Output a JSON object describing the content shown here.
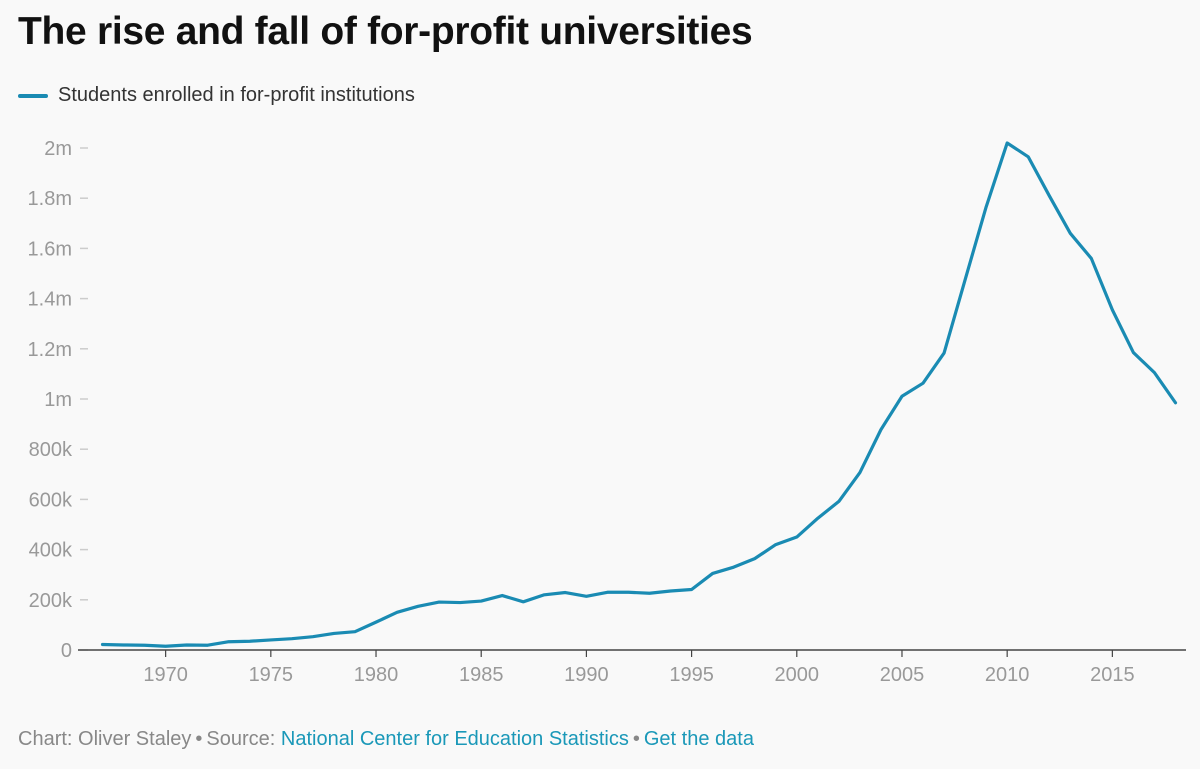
{
  "header": {
    "title": "The rise and fall of for-profit universities"
  },
  "colors": {
    "series": "#1a8bb3",
    "link": "#1a98b8",
    "axis_text": "#999999",
    "background": "#f9f9f9"
  },
  "footer": {
    "chart_prefix": "Chart: Oliver Staley",
    "source_prefix": "Source:",
    "source_link": "National Center for Education Statistics",
    "data_link": "Get the data"
  },
  "chart_data": {
    "type": "line",
    "xlim": [
      1966.5,
      2018.5
    ],
    "ylim": [
      0,
      2000000
    ],
    "x_ticks": [
      1970,
      1975,
      1980,
      1985,
      1990,
      1995,
      2000,
      2005,
      2010,
      2015
    ],
    "y_ticks": [
      0,
      200000,
      400000,
      600000,
      800000,
      1000000,
      1200000,
      1400000,
      1600000,
      1800000,
      2000000
    ],
    "y_tick_labels": [
      "0",
      "200k",
      "400k",
      "600k",
      "800k",
      "1m",
      "1.2m",
      "1.4m",
      "1.6m",
      "1.8m",
      "2m"
    ],
    "grid": false,
    "legend_position": "top-left",
    "series": [
      {
        "name": "Students enrolled in for-profit institutions",
        "x": [
          1967,
          1968,
          1969,
          1970,
          1971,
          1972,
          1973,
          1974,
          1975,
          1976,
          1977,
          1978,
          1979,
          1980,
          1981,
          1982,
          1983,
          1984,
          1985,
          1986,
          1987,
          1988,
          1989,
          1990,
          1991,
          1992,
          1993,
          1994,
          1995,
          1996,
          1997,
          1998,
          1999,
          2000,
          2001,
          2002,
          2003,
          2004,
          2005,
          2006,
          2007,
          2008,
          2009,
          2010,
          2011,
          2012,
          2013,
          2014,
          2015,
          2016,
          2017,
          2018
        ],
        "values": [
          22000,
          20000,
          19000,
          15000,
          20000,
          19000,
          33000,
          35000,
          40000,
          45000,
          53000,
          66000,
          73000,
          111000,
          150000,
          174000,
          191000,
          189000,
          195000,
          217000,
          192000,
          220000,
          229000,
          214000,
          230000,
          230000,
          226000,
          235000,
          241000,
          305000,
          330000,
          364000,
          420000,
          450000,
          525000,
          592000,
          707000,
          878000,
          1011000,
          1063000,
          1183000,
          1475000,
          1765000,
          2020000,
          1965000,
          1810000,
          1660000,
          1560000,
          1355000,
          1185000,
          1105000,
          985000
        ]
      }
    ]
  }
}
